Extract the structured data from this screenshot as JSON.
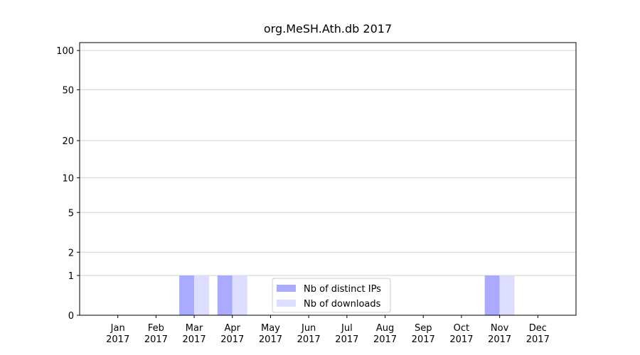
{
  "chart_data": {
    "type": "bar",
    "title": "org.MeSH.Ath.db 2017",
    "categories": [
      "Jan 2017",
      "Feb 2017",
      "Mar 2017",
      "Apr 2017",
      "May 2017",
      "Jun 2017",
      "Jul 2017",
      "Aug 2017",
      "Sep 2017",
      "Oct 2017",
      "Nov 2017",
      "Dec 2017"
    ],
    "series": [
      {
        "name": "Nb of distinct IPs",
        "color": "#aaaaff",
        "values": [
          0,
          0,
          1,
          1,
          0,
          0,
          0,
          0,
          0,
          0,
          1,
          0
        ]
      },
      {
        "name": "Nb of downloads",
        "color": "#ddddff",
        "values": [
          0,
          0,
          1,
          1,
          0,
          0,
          0,
          0,
          0,
          0,
          1,
          0
        ]
      }
    ],
    "y_scale": "log1p",
    "ylim": [
      0,
      115
    ],
    "yticks": [
      0,
      1,
      2,
      5,
      10,
      20,
      50,
      100
    ],
    "grid": true,
    "legend": "lower center"
  }
}
